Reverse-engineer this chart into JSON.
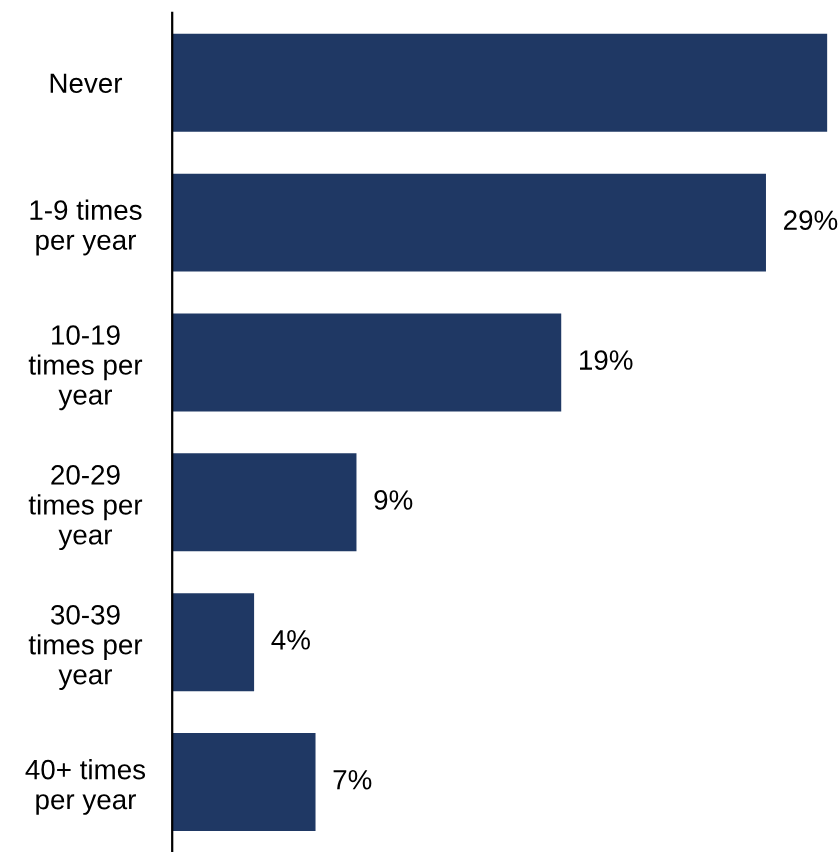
{
  "chart_data": {
    "type": "bar",
    "orientation": "horizontal",
    "categories": [
      "Never",
      "1-9 times\nper year",
      "10-19\ntimes per\nyear",
      "20-29\ntimes per\nyear",
      "30-39\ntimes per\nyear",
      "40+ times\nper year"
    ],
    "values": [
      32,
      29,
      19,
      9,
      4,
      7
    ],
    "value_labels": [
      null,
      "29%",
      "19%",
      "9%",
      "4%",
      "7%"
    ],
    "color": "#1f3864"
  }
}
